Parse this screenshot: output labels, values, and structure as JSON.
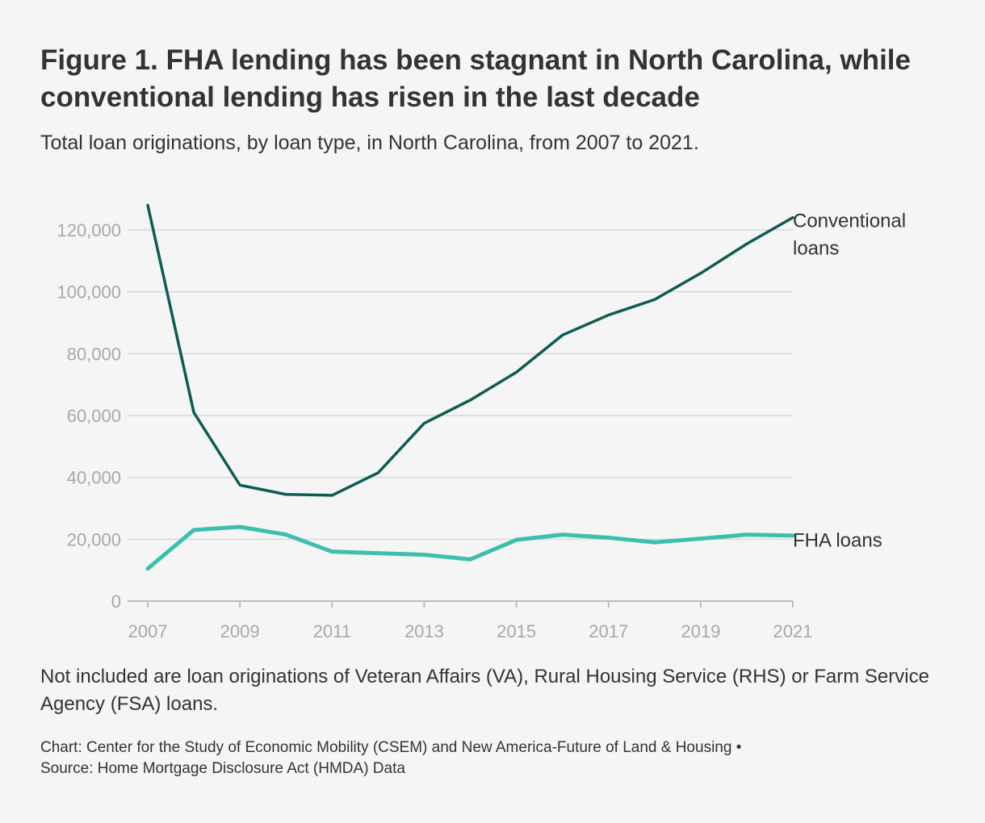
{
  "header": {
    "title": "Figure 1. FHA lending has been stagnant in North Carolina, while conventional lending has risen in the last decade",
    "subtitle": "Total loan originations, by loan type, in North Carolina, from 2007 to 2021."
  },
  "footer": {
    "note": "Not included are loan originations of Veteran Affairs (VA), Rural Housing Service (RHS) or Farm Service Agency (FSA) loans.",
    "credit_line1": "Chart: Center for the Study of Economic Mobility (CSEM) and New America-Future of Land & Housing •",
    "credit_line2": "Source: Home Mortgage Disclosure Act (HMDA) Data"
  },
  "colors": {
    "conventional": "#0b5c52",
    "fha": "#3cbfae",
    "grid": "#d9d9d9",
    "axis": "#bdbdbd",
    "tick_text": "#a8a8a8"
  },
  "chart_data": {
    "type": "line",
    "title": "Figure 1. FHA lending has been stagnant in North Carolina, while conventional lending has risen in the last decade",
    "subtitle": "Total loan originations, by loan type, in North Carolina, from 2007 to 2021.",
    "xlabel": "",
    "ylabel": "",
    "x": [
      2007,
      2008,
      2009,
      2010,
      2011,
      2012,
      2013,
      2014,
      2015,
      2016,
      2017,
      2018,
      2019,
      2020,
      2021
    ],
    "xticks": [
      "2007",
      "2009",
      "2011",
      "2013",
      "2015",
      "2017",
      "2019",
      "2021"
    ],
    "yticks": [
      "0",
      "20,000",
      "40,000",
      "60,000",
      "80,000",
      "100,000",
      "120,000"
    ],
    "xlim": [
      2007,
      2021
    ],
    "ylim": [
      0,
      120000
    ],
    "grid": true,
    "legend": "direct labels at line ends",
    "series": [
      {
        "name": "Conventional loans",
        "label_lines": [
          "Conventional",
          "loans"
        ],
        "values": [
          128000,
          61000,
          37500,
          34500,
          34200,
          41500,
          57500,
          65000,
          74000,
          86000,
          92500,
          97500,
          106000,
          115500,
          124000
        ]
      },
      {
        "name": "FHA loans",
        "label_lines": [
          "FHA loans"
        ],
        "values": [
          10500,
          23000,
          24000,
          21500,
          16000,
          15500,
          15000,
          13500,
          19800,
          21500,
          20500,
          19000,
          20200,
          21500,
          21200
        ]
      }
    ]
  }
}
